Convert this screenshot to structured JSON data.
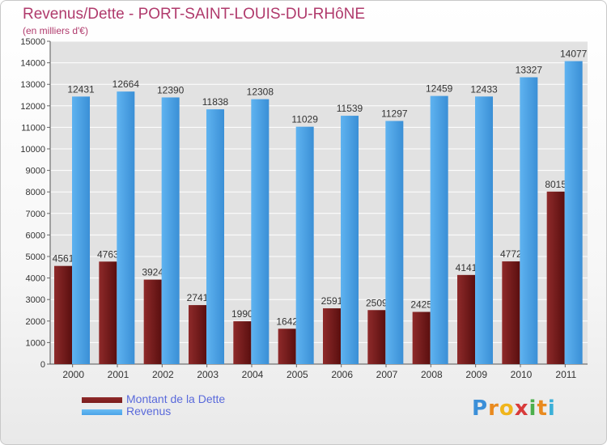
{
  "chart_data": {
    "type": "bar",
    "title": "Revenus/Dette - PORT-SAINT-LOUIS-DU-RHôNE",
    "subtitle": "(en milliers d'€)",
    "categories": [
      "2000",
      "2001",
      "2002",
      "2003",
      "2004",
      "2005",
      "2006",
      "2007",
      "2008",
      "2009",
      "2010",
      "2011"
    ],
    "series": [
      {
        "name": "Montant de la Dette",
        "color": "#7a1c1c",
        "values": [
          4561,
          4763,
          3924,
          2741,
          1990,
          1642,
          2591,
          2509,
          2425,
          4141,
          4772,
          8015
        ],
        "labels": [
          "4561",
          "4763",
          "3924",
          "2741",
          "1990",
          "1642",
          "2591",
          "2509",
          "2425",
          "4141",
          "4772",
          "8015"
        ]
      },
      {
        "name": "Revenus",
        "color": "#4aa3e8",
        "values": [
          12431,
          12664,
          12390,
          11838,
          12308,
          11029,
          11539,
          11297,
          12459,
          12433,
          13327,
          14077
        ],
        "labels": [
          "12431",
          "12664",
          "12390",
          "11838",
          "12308",
          "11029",
          "11539",
          "11297",
          "12459",
          "12433",
          "13327",
          "14077"
        ]
      }
    ],
    "ylim": [
      0,
      15000
    ],
    "yticks": [
      0,
      1000,
      2000,
      3000,
      4000,
      5000,
      6000,
      7000,
      8000,
      9000,
      10000,
      11000,
      12000,
      13000,
      14000,
      15000
    ],
    "grid": true,
    "legend_position": "bottom-left"
  },
  "logo": {
    "letters": [
      "P",
      "r",
      "o",
      "x",
      "i",
      "t",
      "i"
    ],
    "colors": [
      "#3b8fd8",
      "#e98a1f",
      "#f0b51c",
      "#d83a3a",
      "#4caf4c",
      "#e98a1f",
      "#3bb0d8"
    ]
  }
}
